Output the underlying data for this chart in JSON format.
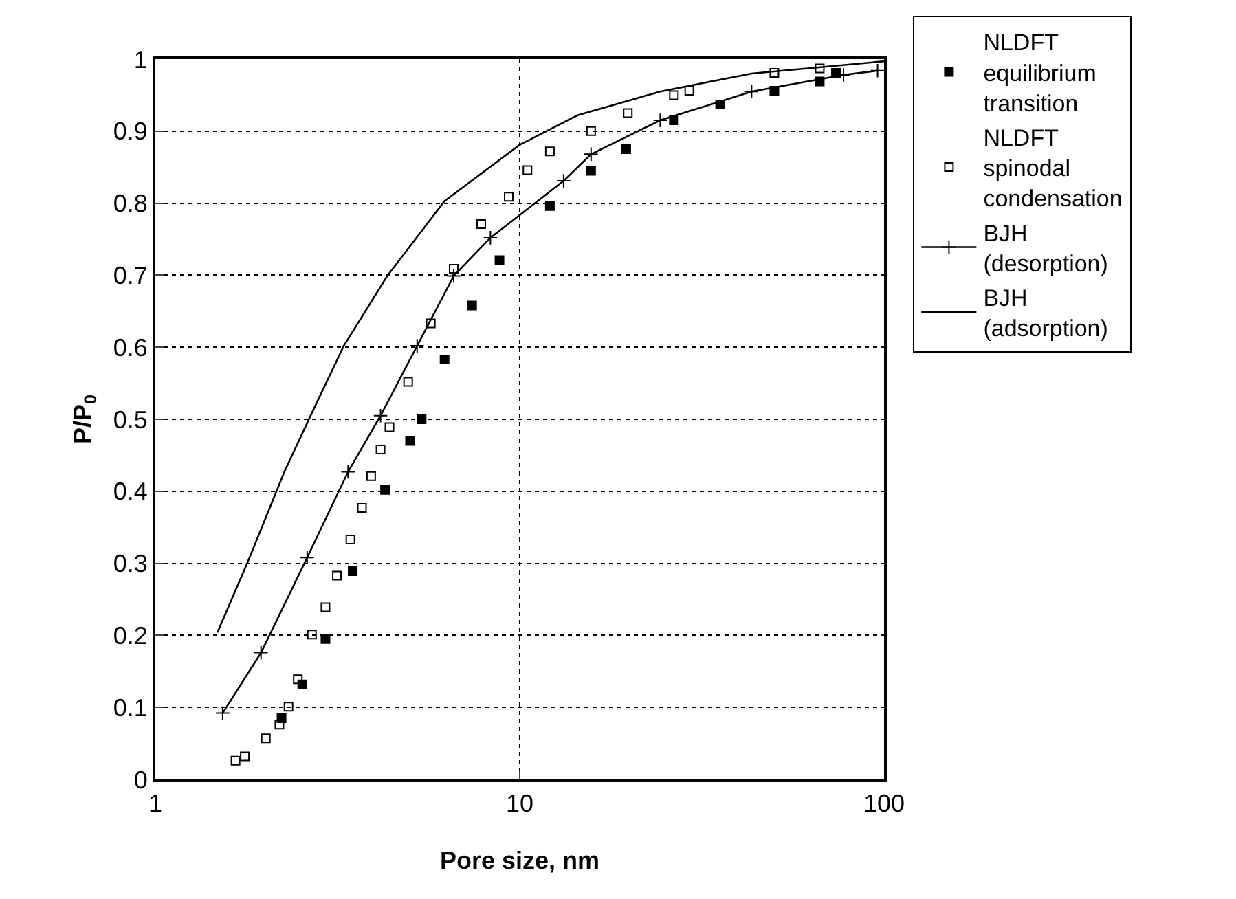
{
  "chart_data": {
    "type": "scatter",
    "xlabel": "Pore size, nm",
    "ylabel": "P/P$_{0}$",
    "log": "x",
    "xlim": [
      1,
      100
    ],
    "xticks": [
      1,
      10,
      100
    ],
    "ylim": [
      0,
      1
    ],
    "yticks": [
      0,
      0.1,
      0.2,
      0.3,
      0.4,
      0.5,
      0.6,
      0.7,
      0.8,
      0.9,
      1
    ],
    "grid": true,
    "legend": "right",
    "series": [
      {
        "name": "NLDFT equilibrium transition",
        "marker": "square",
        "color": "#000000",
        "x": [
          2.22,
          2.53,
          2.93,
          3.48,
          4.27,
          5.0,
          5.38,
          6.22,
          7.4,
          8.8,
          12.1,
          15.7,
          19.6,
          26.5,
          35.5,
          50,
          66.6,
          73.8
        ],
        "values": [
          0.085,
          0.132,
          0.195,
          0.289,
          0.402,
          0.47,
          0.5,
          0.583,
          0.658,
          0.721,
          0.796,
          0.845,
          0.875,
          0.915,
          0.937,
          0.956,
          0.969,
          0.981
        ]
      },
      {
        "name": "NLDFT spinodal condensation",
        "marker": "square-open",
        "color": "#000000",
        "x": [
          1.66,
          1.76,
          2.01,
          2.19,
          2.32,
          2.46,
          2.69,
          2.93,
          3.15,
          3.43,
          3.69,
          3.91,
          4.15,
          4.39,
          4.94,
          5.7,
          6.59,
          7.84,
          9.33,
          10.5,
          12.1,
          15.7,
          19.8,
          26.5,
          29.2,
          50,
          66.6
        ],
        "values": [
          0.026,
          0.032,
          0.057,
          0.076,
          0.101,
          0.139,
          0.201,
          0.239,
          0.283,
          0.333,
          0.377,
          0.421,
          0.458,
          0.489,
          0.552,
          0.633,
          0.709,
          0.771,
          0.809,
          0.846,
          0.872,
          0.9,
          0.925,
          0.95,
          0.956,
          0.981,
          0.987
        ]
      },
      {
        "name": "BJH (desorption)",
        "type": "line",
        "marker": "cross",
        "line_style": "solid",
        "color": "#000000",
        "x": [
          1.53,
          1.95,
          2.61,
          3.38,
          4.15,
          5.23,
          6.59,
          8.31,
          13.2,
          15.7,
          24.3,
          43.3,
          77.4,
          96
        ],
        "values": [
          0.092,
          0.176,
          0.308,
          0.427,
          0.505,
          0.602,
          0.699,
          0.752,
          0.831,
          0.868,
          0.915,
          0.955,
          0.978,
          0.984
        ]
      },
      {
        "name": "BJH (adsorption)",
        "type": "line",
        "marker": "none",
        "line_style": "solid",
        "color": "#000000",
        "x": [
          1.48,
          1.79,
          2.26,
          2.65,
          3.29,
          4.33,
          6.22,
          10,
          14.4,
          24.3,
          43.3,
          100
        ],
        "values": [
          0.204,
          0.301,
          0.427,
          0.502,
          0.602,
          0.699,
          0.803,
          0.881,
          0.922,
          0.955,
          0.98,
          0.997
        ]
      }
    ]
  }
}
